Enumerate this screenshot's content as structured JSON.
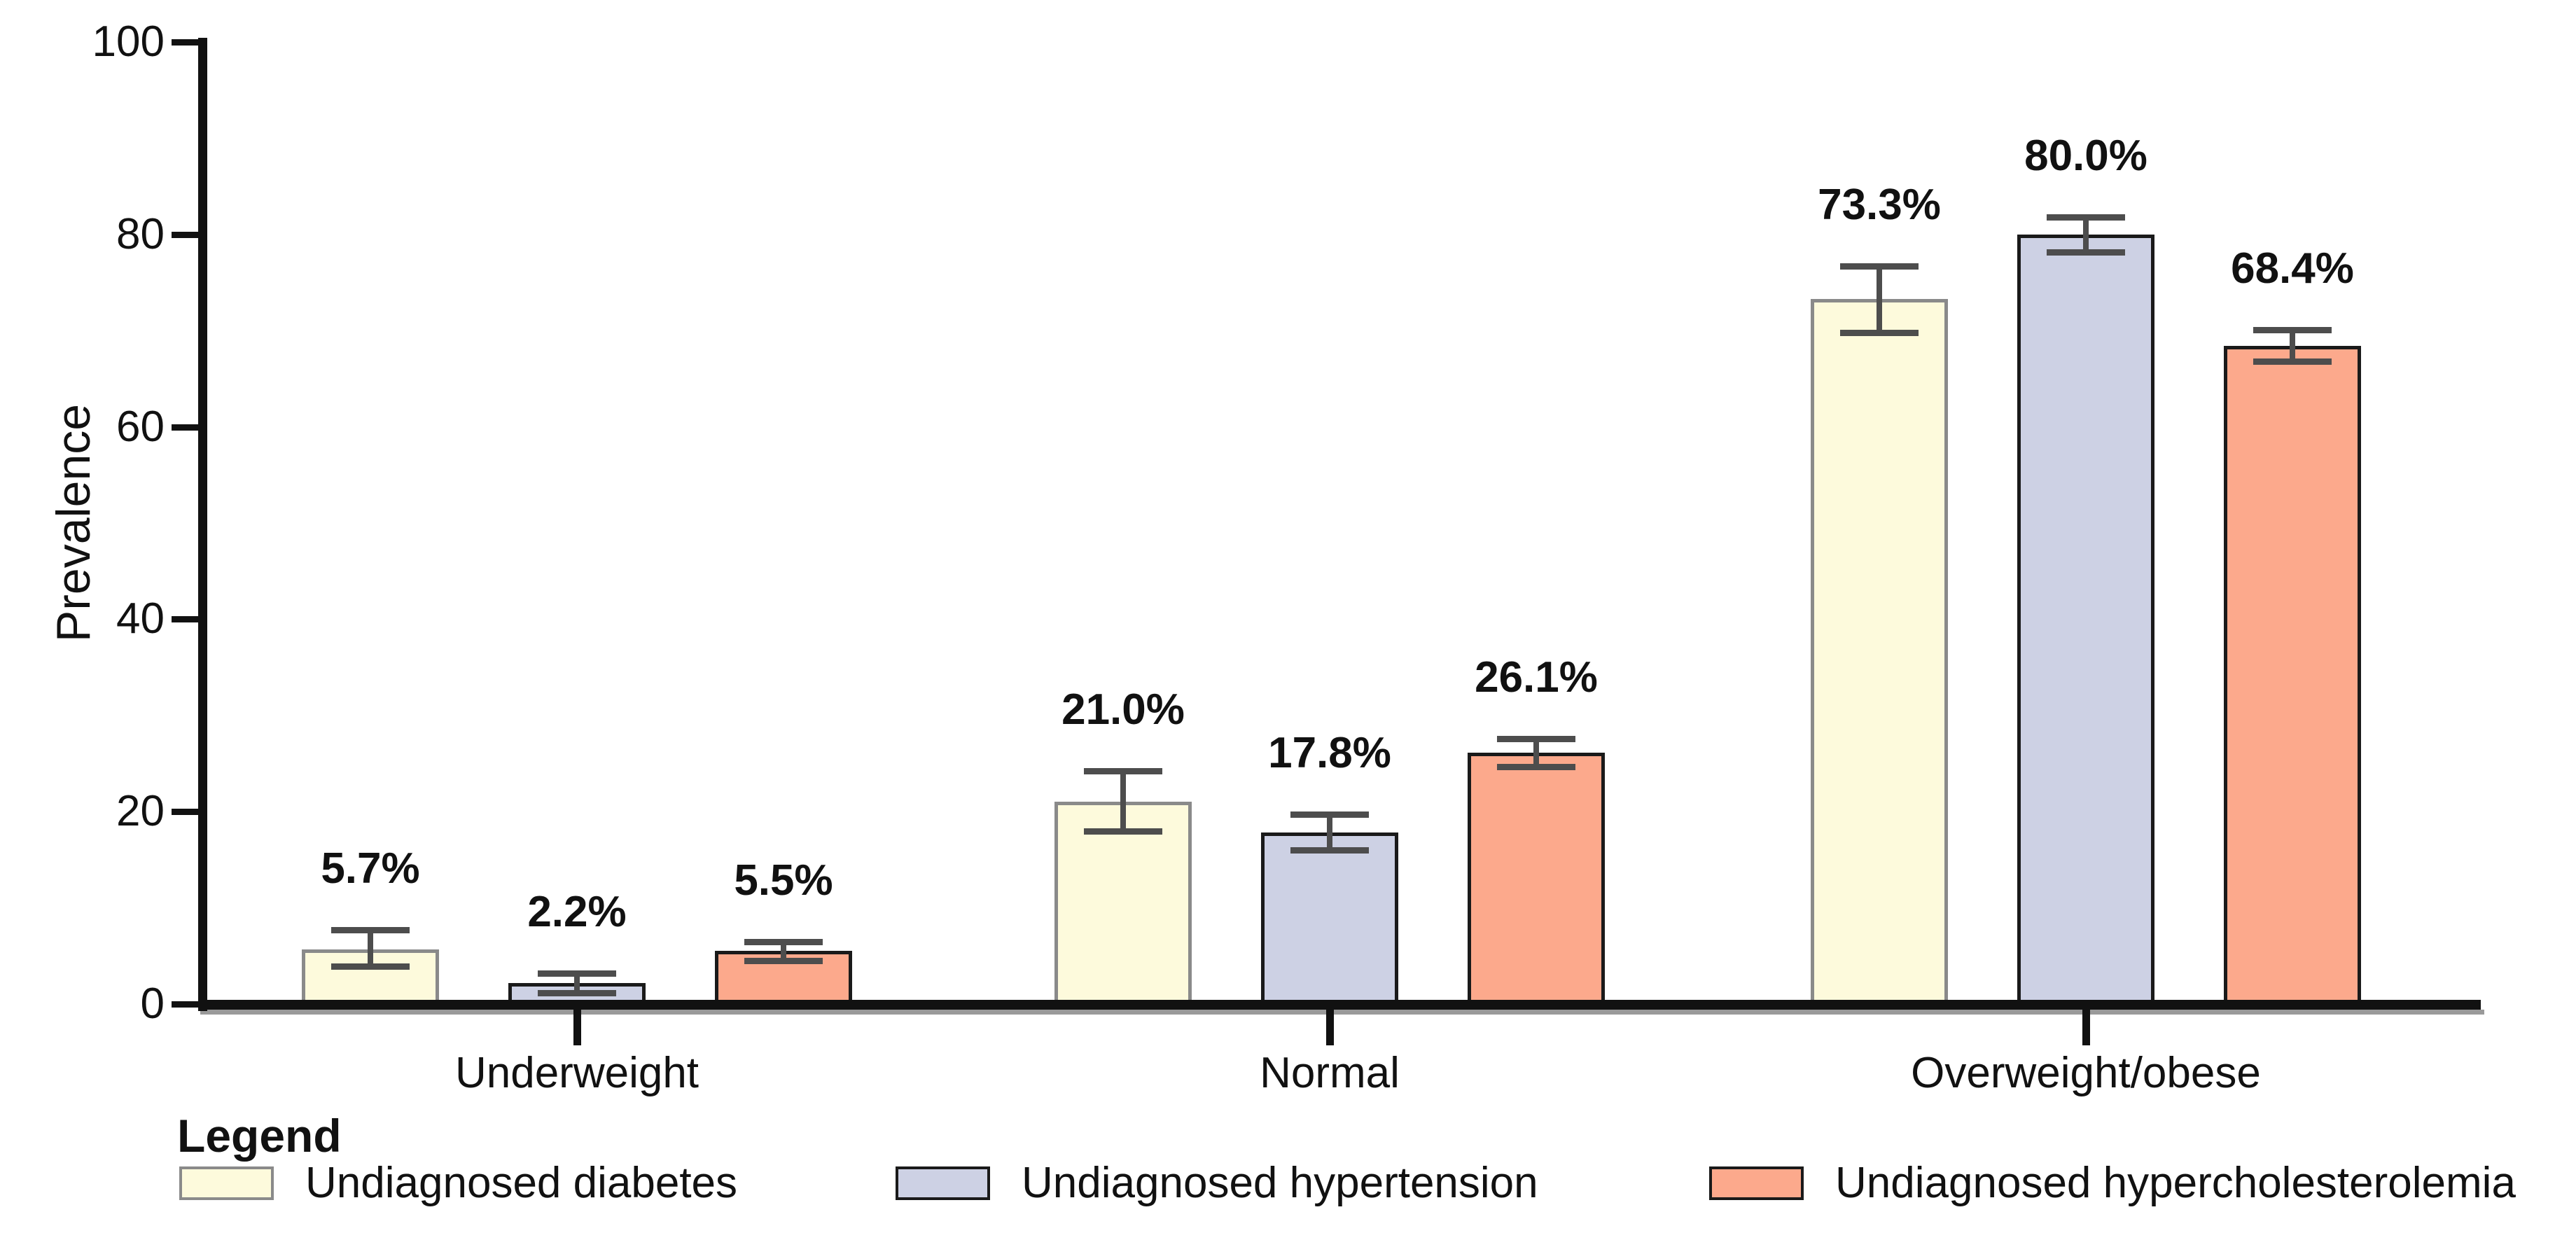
{
  "chart_data": {
    "type": "bar",
    "title": "",
    "ylabel": "Prevalence",
    "ylim": [
      0,
      100
    ],
    "yticks": [
      0,
      20,
      40,
      60,
      80,
      100
    ],
    "grid": false,
    "legend_position": "bottom",
    "legend_title": "Legend",
    "categories": [
      "Underweight",
      "Normal",
      "Overweight/obese"
    ],
    "series": [
      {
        "name": "Undiagnosed diabetes",
        "fill": "#FDFADC",
        "border": "#8a8a8a",
        "values": [
          5.7,
          21.0,
          73.3
        ],
        "value_labels": [
          "5.7%",
          "21.0%",
          "73.3%"
        ],
        "err_lo": [
          3.9,
          18.0,
          69.8
        ],
        "err_hi": [
          7.7,
          24.2,
          76.7
        ]
      },
      {
        "name": "Undiagnosed hypertension",
        "fill": "#CDD1E4",
        "border": "#1a1a1a",
        "values": [
          2.2,
          17.8,
          80.0
        ],
        "value_labels": [
          "2.2%",
          "17.8%",
          "80.0%"
        ],
        "err_lo": [
          1.2,
          16.0,
          78.2
        ],
        "err_hi": [
          3.2,
          19.7,
          81.8
        ]
      },
      {
        "name": "Undiagnosed hypercholesterolemia",
        "fill": "#FCA98C",
        "border": "#1a1a1a",
        "values": [
          5.5,
          26.1,
          68.4
        ],
        "value_labels": [
          "5.5%",
          "26.1%",
          "68.4%"
        ],
        "err_lo": [
          4.5,
          24.7,
          66.8
        ],
        "err_hi": [
          6.5,
          27.6,
          70.1
        ]
      }
    ],
    "error_bar_color": "#4d4d4d",
    "axis_color": "#111111",
    "text_color": "#111111"
  }
}
